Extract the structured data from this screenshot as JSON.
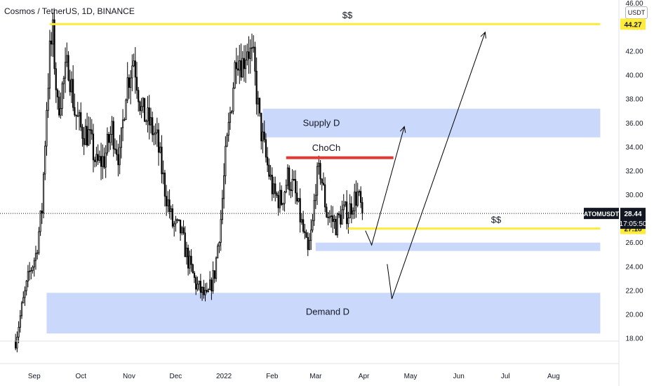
{
  "title": "Cosmos / TetherUS, 1D, BINANCE",
  "currency_badge": "USDT",
  "chart_data": {
    "type": "candlestick",
    "symbol": "ATOMUSDT",
    "interval": "1D",
    "exchange": "BINANCE",
    "y_axis": {
      "range": [
        17.6,
        46.2
      ],
      "ticks": [
        18,
        20,
        22,
        24,
        26,
        28,
        30,
        32,
        34,
        36,
        38,
        40,
        42,
        44
      ],
      "tick_labels": [
        "18.00",
        "20.00",
        "22.00",
        "24.00",
        "26.00",
        "28.00",
        "30.00",
        "32.00",
        "34.00",
        "36.00",
        "38.00",
        "40.00",
        "42.00",
        "44.00"
      ],
      "clipped_label": "46.00"
    },
    "x_axis": {
      "labels": [
        "Sep",
        "Oct",
        "Nov",
        "Dec",
        "2022",
        "Feb",
        "Mar",
        "Apr",
        "May",
        "Jun",
        "Jul",
        "Aug"
      ]
    },
    "price_labels": {
      "last": {
        "symbol": "ATOMUSDT",
        "value": "28.44",
        "countdown": "17:05:50",
        "color": "#000000"
      },
      "level_high": {
        "value": "44.27",
        "color": "#ffeb3b"
      },
      "level_low": {
        "value": "27.18",
        "color": "#ffeb3b"
      }
    },
    "anchors": [
      {
        "d": "2021-08-20",
        "v": 17.8
      },
      {
        "d": "2021-08-24",
        "v": 20.5
      },
      {
        "d": "2021-08-29",
        "v": 23.5
      },
      {
        "d": "2021-09-02",
        "v": 25.0
      },
      {
        "d": "2021-09-06",
        "v": 28.8
      },
      {
        "d": "2021-09-09",
        "v": 37.5
      },
      {
        "d": "2021-09-11",
        "v": 41.8
      },
      {
        "d": "2021-09-13",
        "v": 43.3
      },
      {
        "d": "2021-09-16",
        "v": 37.2
      },
      {
        "d": "2021-09-20",
        "v": 39.5
      },
      {
        "d": "2021-09-23",
        "v": 41.0
      },
      {
        "d": "2021-09-27",
        "v": 37.0
      },
      {
        "d": "2021-10-01",
        "v": 35.5
      },
      {
        "d": "2021-10-06",
        "v": 35.0
      },
      {
        "d": "2021-10-11",
        "v": 32.5
      },
      {
        "d": "2021-10-16",
        "v": 33.0
      },
      {
        "d": "2021-10-21",
        "v": 35.5
      },
      {
        "d": "2021-10-26",
        "v": 33.0
      },
      {
        "d": "2021-10-30",
        "v": 39.0
      },
      {
        "d": "2021-11-04",
        "v": 41.5
      },
      {
        "d": "2021-11-09",
        "v": 37.0
      },
      {
        "d": "2021-11-14",
        "v": 36.0
      },
      {
        "d": "2021-11-19",
        "v": 34.5
      },
      {
        "d": "2021-11-24",
        "v": 30.5
      },
      {
        "d": "2021-11-29",
        "v": 27.5
      },
      {
        "d": "2021-12-04",
        "v": 27.0
      },
      {
        "d": "2021-12-09",
        "v": 24.5
      },
      {
        "d": "2021-12-14",
        "v": 22.5
      },
      {
        "d": "2021-12-18",
        "v": 21.8
      },
      {
        "d": "2021-12-21",
        "v": 21.3
      },
      {
        "d": "2021-12-26",
        "v": 23.5
      },
      {
        "d": "2021-12-30",
        "v": 28.0
      },
      {
        "d": "2022-01-02",
        "v": 33.0
      },
      {
        "d": "2022-01-06",
        "v": 38.0
      },
      {
        "d": "2022-01-09",
        "v": 42.0
      },
      {
        "d": "2022-01-13",
        "v": 41.0
      },
      {
        "d": "2022-01-16",
        "v": 42.5
      },
      {
        "d": "2022-01-20",
        "v": 41.0
      },
      {
        "d": "2022-01-24",
        "v": 36.0
      },
      {
        "d": "2022-01-28",
        "v": 33.0
      },
      {
        "d": "2022-02-02",
        "v": 30.0
      },
      {
        "d": "2022-02-07",
        "v": 29.5
      },
      {
        "d": "2022-02-11",
        "v": 31.5
      },
      {
        "d": "2022-02-15",
        "v": 30.5
      },
      {
        "d": "2022-02-20",
        "v": 27.5
      },
      {
        "d": "2022-02-24",
        "v": 25.0
      },
      {
        "d": "2022-02-27",
        "v": 27.5
      },
      {
        "d": "2022-03-01",
        "v": 31.0
      },
      {
        "d": "2022-03-04",
        "v": 32.0
      },
      {
        "d": "2022-03-08",
        "v": 28.5
      },
      {
        "d": "2022-03-14",
        "v": 27.5
      },
      {
        "d": "2022-03-18",
        "v": 28.5
      },
      {
        "d": "2022-03-22",
        "v": 28.5
      },
      {
        "d": "2022-03-25",
        "v": 29.5
      },
      {
        "d": "2022-03-28",
        "v": 30.0
      },
      {
        "d": "2022-03-31",
        "v": 28.44
      }
    ],
    "annotations": [
      {
        "type": "hline",
        "value": 44.27,
        "from": "2021-09-11",
        "to": "2022-08-31",
        "color": "#ffeb3b"
      },
      {
        "type": "hline",
        "value": 27.18,
        "from": "2022-03-22",
        "to": "2022-08-31",
        "color": "#ffeb3b"
      },
      {
        "type": "hline",
        "value": 33.1,
        "from": "2022-02-10",
        "to": "2022-04-20",
        "color": "#e53935"
      },
      {
        "type": "zone",
        "from_price": 34.8,
        "to_price": 37.2,
        "from": "2022-01-26",
        "to": "2022-08-31",
        "color": "#c7d6fb",
        "label_key": "supply"
      },
      {
        "type": "zone",
        "from_price": 25.3,
        "to_price": 26.0,
        "from": "2022-03-01",
        "to": "2022-08-31",
        "color": "#c7d6fb"
      },
      {
        "type": "zone",
        "from_price": 18.4,
        "to_price": 21.8,
        "from": "2021-09-09",
        "to": "2022-08-31",
        "color": "#c7d6fb",
        "label_key": "demand"
      },
      {
        "type": "path",
        "points": [
          [
            "2022-04-02",
            27.0
          ],
          [
            "2022-04-06",
            25.8
          ],
          [
            "2022-04-27",
            35.7
          ]
        ],
        "color": "#000000"
      },
      {
        "type": "path",
        "points": [
          [
            "2022-04-16",
            24.2
          ],
          [
            "2022-04-19",
            21.3
          ],
          [
            "2022-06-18",
            43.6
          ]
        ],
        "color": "#000000"
      }
    ],
    "texts": {
      "top_ss": "$$",
      "right_ss": "$$",
      "supply": "Supply D",
      "choch": "ChoCh",
      "demand": "Demand D"
    }
  }
}
